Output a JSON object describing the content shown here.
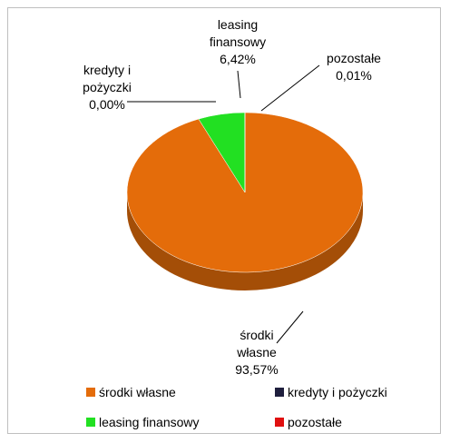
{
  "chart_data": {
    "type": "pie",
    "categories": [
      "środki własne",
      "kredyty i pożyczki",
      "leasing finansowy",
      "pozostałe"
    ],
    "values": [
      93.57,
      0.0,
      6.42,
      0.01
    ],
    "value_labels": [
      "93,57%",
      "0,00%",
      "6,42%",
      "0,01%"
    ],
    "colors": [
      "#e46c0a",
      "#1f1f3d",
      "#22e022",
      "#e01010"
    ],
    "legend": "bottom"
  }
}
